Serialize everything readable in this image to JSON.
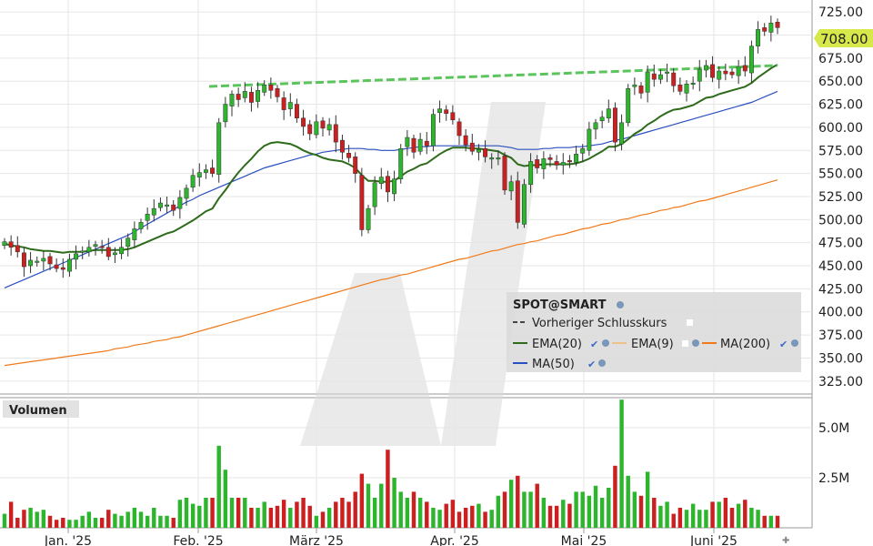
{
  "chart_data": [
    {
      "type": "candlestick",
      "symbol": "SPOT@SMART",
      "ylim": [
        312,
        734
      ],
      "y_ticks": [
        "725.00",
        "700.00",
        "675.00",
        "650.00",
        "625.00",
        "600.00",
        "575.00",
        "550.00",
        "525.00",
        "500.00",
        "475.00",
        "450.00",
        "425.00",
        "400.00",
        "375.00",
        "350.00",
        "325.00"
      ],
      "last_price_label": "708.00",
      "previous_close": 667,
      "x_labels": [
        "Jan. '25",
        "Feb. '25",
        "März '25",
        "Apr. '25",
        "Mai '25",
        "Juni '25"
      ],
      "legend": [
        {
          "name": "SPOT@SMART",
          "color": "#222222"
        },
        {
          "name": "Vorheriger Schlusskurs",
          "color": "#444444",
          "style": "dashed"
        },
        {
          "name": "EMA(20)",
          "color": "#2e6b1a"
        },
        {
          "name": "EMA(9)",
          "color": "#f0c08a"
        },
        {
          "name": "MA(200)",
          "color": "#f07a1a"
        },
        {
          "name": "MA(50)",
          "color": "#2a4fc0"
        }
      ],
      "colors": {
        "up": "#2db52d",
        "down": "#cc1f1f",
        "ema20": "#2e6b1a",
        "ma50": "#2a4fc0",
        "ma200": "#f07a1a",
        "prev_close": "#5cc45c",
        "price_tag": "#d6e84a"
      },
      "closes": [
        476,
        470,
        465,
        449,
        456,
        455,
        458,
        452,
        447,
        446,
        457,
        463,
        466,
        470,
        473,
        470,
        460,
        464,
        470,
        480,
        490,
        497,
        506,
        512,
        518,
        516,
        510,
        524,
        534,
        548,
        551,
        554,
        550,
        605,
        625,
        636,
        630,
        639,
        627,
        640,
        646,
        640,
        633,
        619,
        627,
        610,
        601,
        593,
        606,
        599,
        603,
        584,
        573,
        567,
        550,
        489,
        512,
        540,
        546,
        530,
        544,
        577,
        589,
        573,
        587,
        580,
        614,
        620,
        615,
        608,
        591,
        581,
        574,
        576,
        568,
        567,
        567,
        532,
        541,
        497,
        538,
        563,
        556,
        566,
        565,
        559,
        562,
        563,
        571,
        577,
        598,
        605,
        611,
        620,
        584,
        605,
        642,
        646,
        637,
        660,
        652,
        657,
        660,
        645,
        639,
        647,
        648,
        663,
        667,
        654,
        661,
        658,
        657,
        666,
        661,
        688,
        706,
        704,
        713,
        708
      ],
      "ema20": [
        474,
        472,
        471,
        470,
        468,
        467,
        466,
        466,
        465,
        464,
        465,
        465,
        465,
        466,
        467,
        467,
        467,
        467,
        467,
        468,
        470,
        473,
        476,
        479,
        482,
        485,
        487,
        491,
        495,
        499,
        504,
        509,
        512,
        523,
        532,
        542,
        551,
        559,
        566,
        574,
        580,
        583,
        584,
        583,
        582,
        579,
        575,
        572,
        570,
        567,
        565,
        564,
        563,
        560,
        556,
        548,
        542,
        542,
        541,
        541,
        542,
        547,
        552,
        555,
        559,
        561,
        566,
        571,
        575,
        578,
        578,
        578,
        577,
        577,
        576,
        575,
        574,
        570,
        567,
        560,
        558,
        559,
        559,
        560,
        560,
        560,
        560,
        560,
        561,
        563,
        566,
        570,
        574,
        579,
        579,
        582,
        587,
        593,
        597,
        603,
        607,
        612,
        616,
        619,
        620,
        622,
        624,
        628,
        632,
        633,
        636,
        638,
        640,
        642,
        644,
        648,
        654,
        659,
        664,
        668
      ],
      "ma50": [
        426,
        429,
        432,
        435,
        438,
        441,
        444,
        447,
        450,
        453,
        456,
        459,
        462,
        465,
        468,
        471,
        474,
        477,
        480,
        483,
        487,
        491,
        495,
        499,
        503,
        507,
        511,
        515,
        519,
        522,
        526,
        529,
        532,
        535,
        538,
        541,
        544,
        547,
        550,
        553,
        556,
        558,
        560,
        562,
        564,
        566,
        568,
        570,
        571,
        573,
        574,
        575,
        576,
        577,
        577,
        577,
        576,
        576,
        575,
        575,
        575,
        576,
        577,
        578,
        579,
        579,
        580,
        580,
        580,
        580,
        580,
        580,
        580,
        580,
        580,
        580,
        580,
        579,
        578,
        576,
        576,
        576,
        576,
        577,
        577,
        578,
        578,
        578,
        579,
        579,
        580,
        581,
        582,
        584,
        586,
        587,
        589,
        591,
        593,
        595,
        597,
        599,
        601,
        603,
        605,
        607,
        609,
        611,
        613,
        615,
        617,
        619,
        621,
        623,
        625,
        627,
        630,
        633,
        636,
        639
      ],
      "ma200": [
        342,
        343,
        344,
        345,
        346,
        347,
        348,
        349,
        350,
        351,
        352,
        353,
        354,
        355,
        356,
        357,
        358,
        360,
        361,
        362,
        364,
        365,
        366,
        368,
        369,
        370,
        372,
        373,
        375,
        377,
        379,
        381,
        383,
        385,
        387,
        389,
        391,
        393,
        395,
        397,
        399,
        401,
        403,
        405,
        407,
        409,
        411,
        413,
        415,
        417,
        419,
        421,
        423,
        425,
        427,
        429,
        431,
        433,
        435,
        436,
        438,
        440,
        441,
        443,
        445,
        447,
        449,
        451,
        453,
        455,
        457,
        458,
        460,
        462,
        464,
        466,
        467,
        469,
        471,
        473,
        474,
        476,
        477,
        479,
        481,
        483,
        484,
        486,
        488,
        490,
        491,
        493,
        495,
        496,
        498,
        500,
        501,
        503,
        505,
        506,
        508,
        510,
        511,
        513,
        514,
        516,
        518,
        520,
        521,
        523,
        525,
        527,
        529,
        531,
        533,
        535,
        537,
        539,
        541,
        543
      ]
    },
    {
      "type": "bar",
      "title": "Volumen",
      "y_ticks": [
        "5.0M",
        "2.5M"
      ],
      "ylim": [
        0,
        6.5
      ],
      "volumes": [
        0.7,
        1.3,
        0.5,
        0.9,
        1.0,
        0.8,
        0.9,
        0.6,
        0.4,
        0.5,
        0.4,
        0.4,
        0.6,
        0.8,
        0.5,
        0.5,
        0.9,
        0.7,
        0.6,
        0.8,
        1.0,
        0.8,
        0.6,
        1.0,
        0.6,
        0.6,
        0.5,
        1.4,
        1.5,
        1.2,
        1.1,
        1.5,
        1.5,
        4.1,
        2.9,
        1.5,
        1.5,
        1.5,
        1.0,
        1.0,
        1.3,
        1.0,
        1.1,
        1.4,
        1.0,
        1.3,
        1.5,
        1.1,
        0.6,
        0.8,
        1.0,
        1.3,
        1.5,
        1.3,
        1.8,
        2.7,
        2.2,
        1.5,
        2.2,
        3.9,
        2.5,
        1.8,
        1.5,
        1.8,
        1.5,
        1.3,
        1.0,
        0.9,
        1.2,
        1.4,
        0.8,
        1.0,
        1.1,
        1.2,
        0.8,
        0.9,
        1.6,
        1.8,
        2.4,
        2.6,
        1.8,
        1.8,
        2.2,
        1.5,
        1.1,
        1.1,
        1.4,
        1.2,
        1.8,
        1.8,
        1.6,
        2.1,
        1.5,
        2.0,
        3.1,
        6.4,
        2.6,
        1.8,
        1.6,
        2.8,
        1.5,
        1.1,
        1.3,
        0.7,
        1.0,
        0.9,
        1.2,
        0.9,
        0.9,
        1.3,
        1.3,
        1.5,
        1.0,
        1.2,
        1.4,
        1.0,
        0.9,
        0.6,
        0.6,
        0.6
      ]
    }
  ]
}
